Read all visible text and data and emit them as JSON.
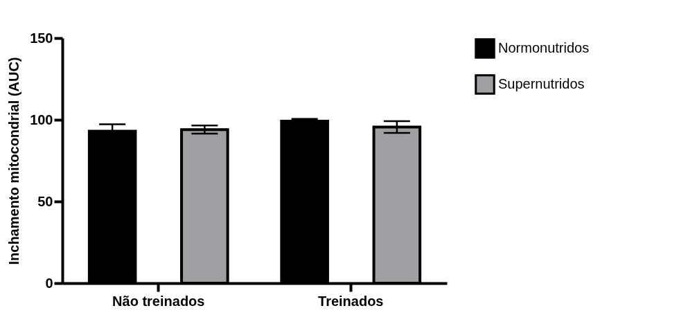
{
  "chart_data": {
    "type": "bar",
    "ylabel": "Inchamento mitocondrial (AUC)",
    "categories": [
      "Não treinados",
      "Treinados"
    ],
    "series": [
      {
        "name": "Normonutridos",
        "color": "#000000",
        "values": [
          93,
          99.2
        ],
        "errors": [
          4.2,
          1.3
        ]
      },
      {
        "name": "Supernutridos",
        "color": "#a09fa4",
        "values": [
          94,
          95.5
        ],
        "errors": [
          2.5,
          3.6
        ]
      }
    ],
    "ylim": [
      0,
      150
    ],
    "yticks": [
      0,
      50,
      100,
      150
    ],
    "grid": false,
    "legend": "top right"
  }
}
